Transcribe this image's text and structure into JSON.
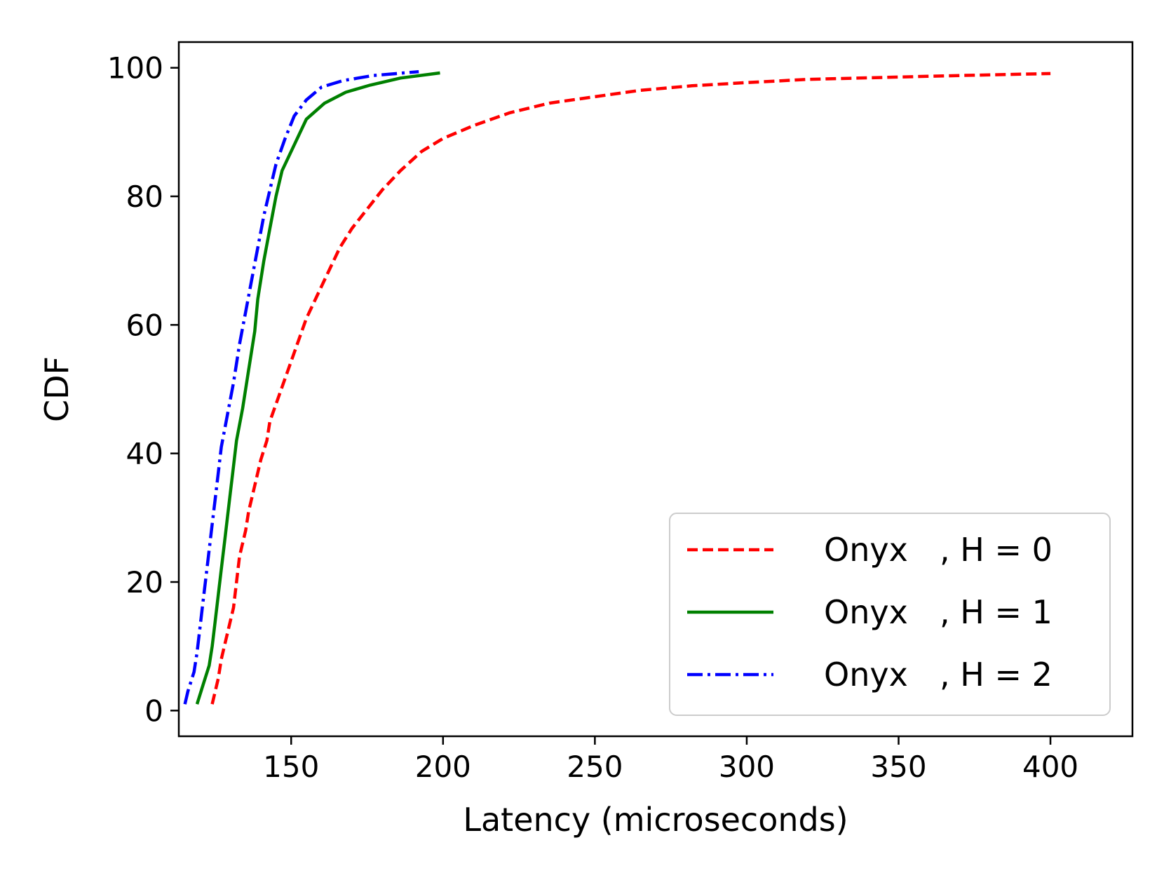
{
  "chart_data": {
    "type": "line",
    "title": "",
    "xlabel": "Latency (microseconds)",
    "ylabel": "CDF",
    "xlim": [
      113,
      427
    ],
    "ylim": [
      -4,
      104
    ],
    "xticks": [
      150,
      200,
      250,
      300,
      350,
      400
    ],
    "yticks": [
      0,
      20,
      40,
      60,
      80,
      100
    ],
    "grid": false,
    "legend_position": "bottom-right",
    "series": [
      {
        "name": "Onyx    , H = 0",
        "label_main": "Onyx",
        "label_suffix": ", H = 0",
        "color": "#ff0000",
        "style": "dashed",
        "x": [
          124,
          126,
          127,
          129,
          131,
          132,
          133,
          135,
          136,
          138,
          140,
          142,
          143,
          146,
          149,
          152,
          155,
          159,
          162,
          166,
          170,
          175,
          180,
          186,
          193,
          200,
          210,
          222,
          235,
          250,
          265,
          282,
          300,
          320,
          345,
          370,
          400
        ],
        "y": [
          1,
          5,
          8,
          12,
          16,
          20,
          24,
          28,
          31,
          35,
          39,
          42,
          45,
          49,
          53,
          57,
          61,
          65,
          68,
          72,
          75,
          78,
          81,
          84,
          87,
          89,
          91,
          93,
          94.5,
          95.5,
          96.5,
          97.2,
          97.7,
          98.2,
          98.5,
          98.8,
          99.1
        ]
      },
      {
        "name": "Onyx    , H = 1",
        "label_main": "Onyx",
        "label_suffix": ", H = 1",
        "color": "#008000",
        "style": "solid",
        "x": [
          119,
          121,
          123,
          124,
          125,
          126,
          127,
          128,
          129,
          130,
          131,
          132,
          134,
          136,
          138,
          139,
          141,
          143,
          145,
          147,
          151,
          155,
          161,
          168,
          176,
          186,
          199
        ],
        "y": [
          1,
          4,
          7,
          10,
          14,
          18,
          22,
          26,
          30,
          34,
          38,
          42,
          47,
          53,
          59,
          64,
          70,
          75,
          80,
          84,
          88,
          92,
          94.5,
          96.2,
          97.3,
          98.4,
          99.2
        ]
      },
      {
        "name": "Onyx    , H = 2",
        "label_main": "Onyx",
        "label_suffix": ", H = 2",
        "color": "#0000ff",
        "style": "dashdot",
        "x": [
          115,
          116,
          118,
          119,
          120,
          121,
          122,
          123,
          124,
          125,
          126,
          127,
          129,
          131,
          133,
          135,
          137,
          139,
          141,
          143,
          145,
          148,
          151,
          155,
          160,
          167,
          177,
          192
        ],
        "y": [
          1,
          3,
          6,
          9,
          13,
          17,
          21,
          25,
          29,
          33,
          37,
          41,
          46,
          51,
          57,
          62,
          67,
          72,
          77,
          81,
          85,
          89,
          92.5,
          95,
          97,
          98,
          98.8,
          99.4
        ]
      }
    ]
  }
}
